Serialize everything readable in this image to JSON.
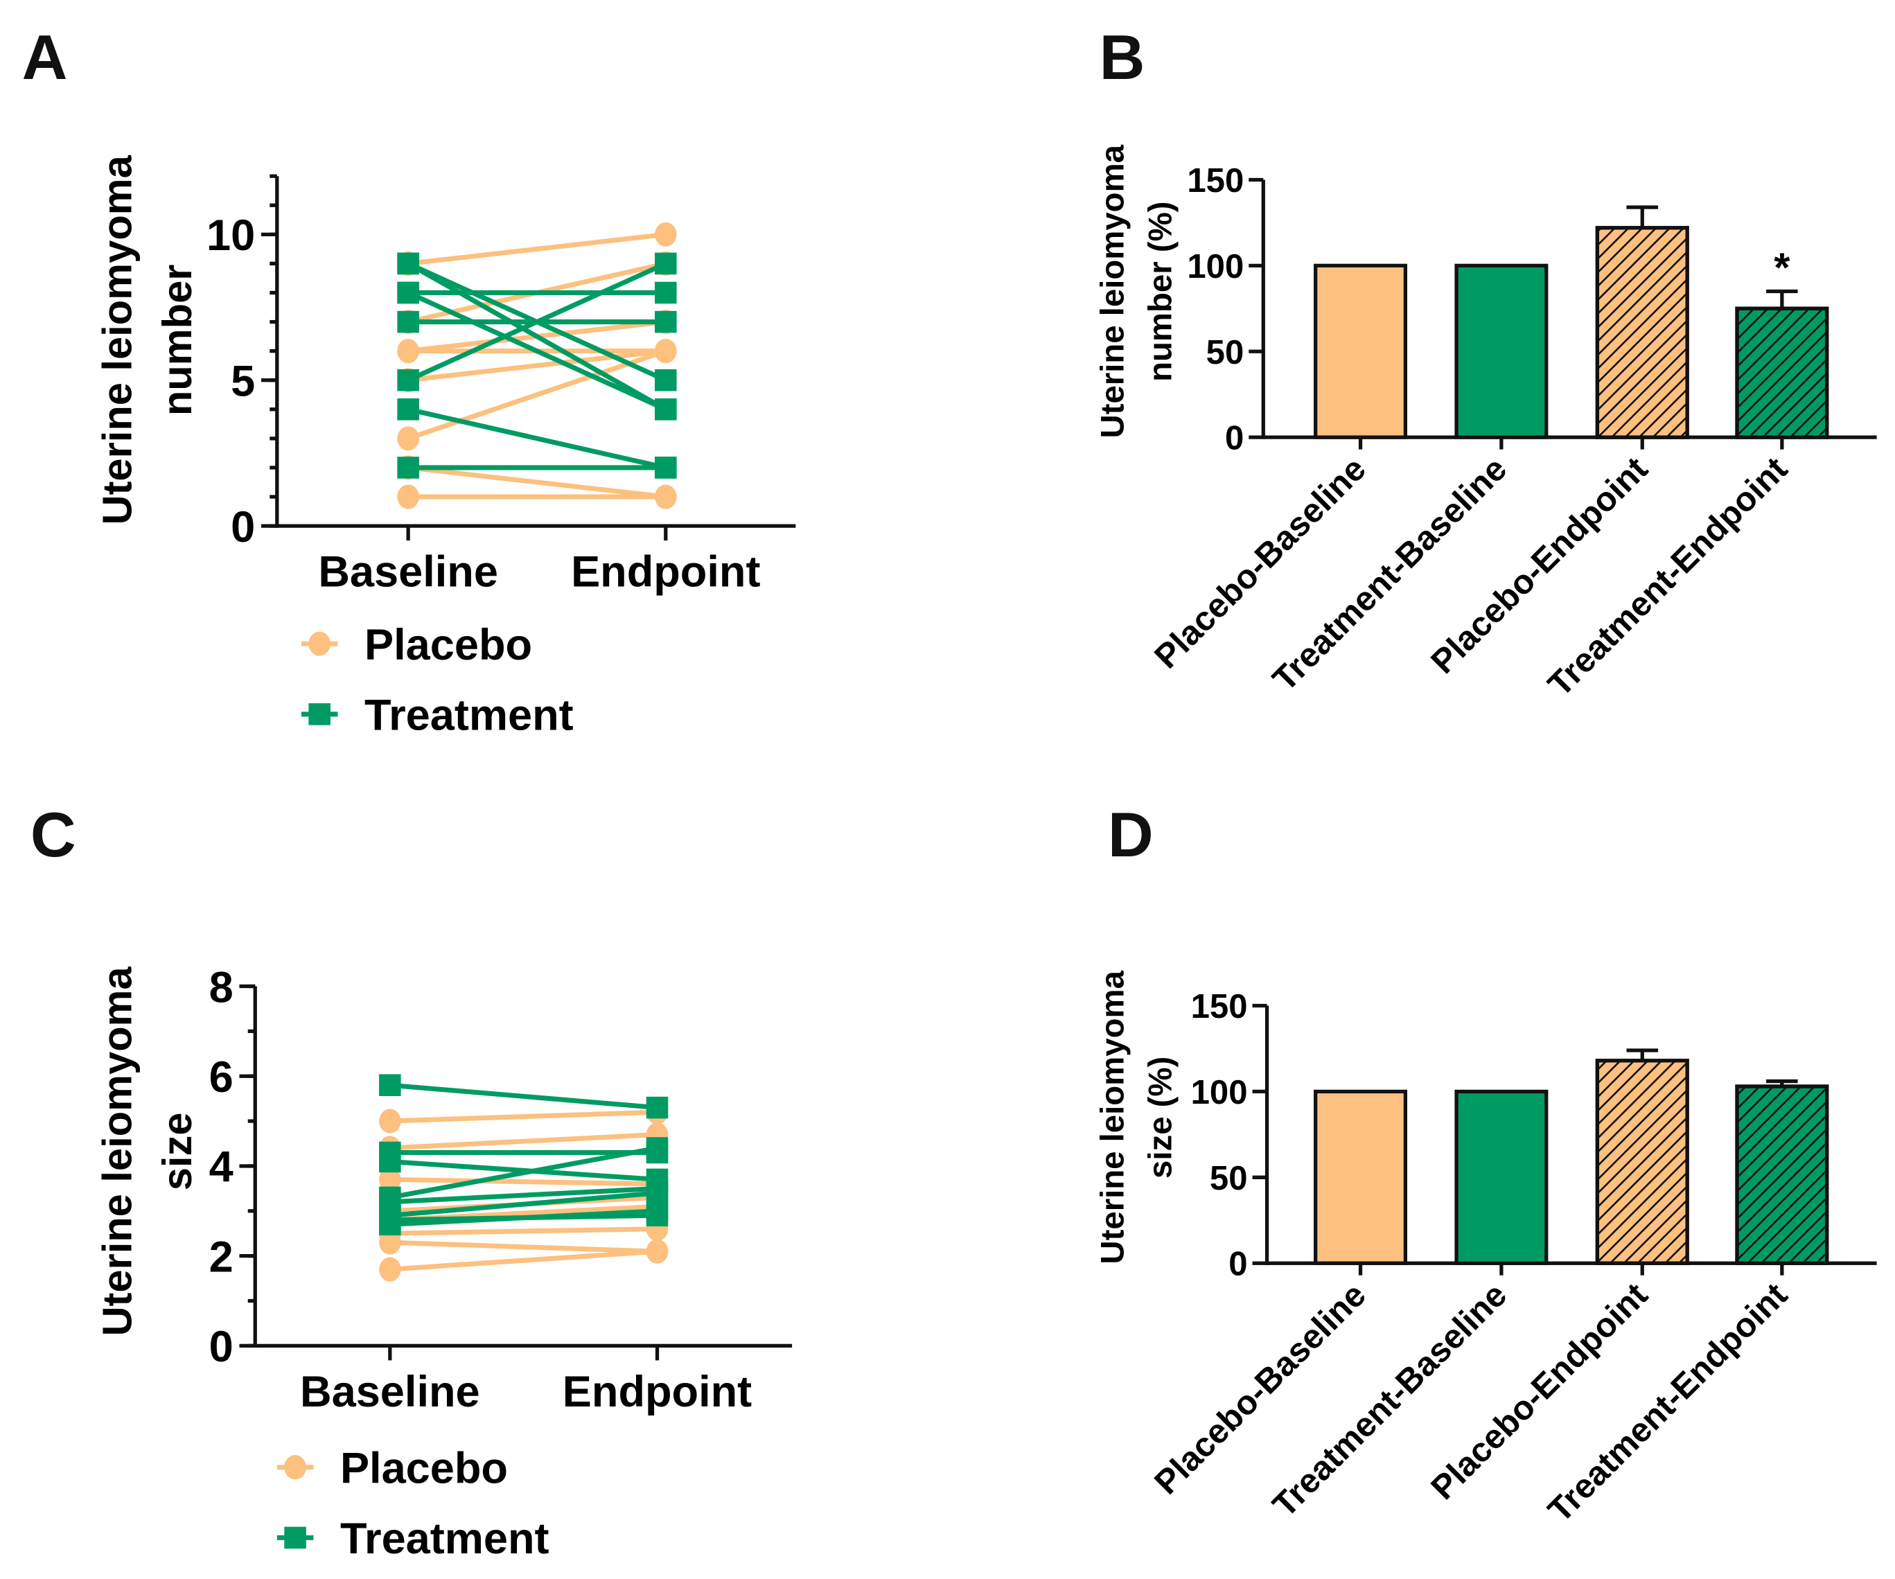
{
  "colors": {
    "placebo": "#FDC07F",
    "treatment": "#009B62",
    "axis": "#111111"
  },
  "chart_data": [
    {
      "panel": "A",
      "type": "line",
      "ylabel": [
        "Uterine leiomyoma",
        "number"
      ],
      "categories": [
        "Baseline",
        "Endpoint"
      ],
      "ylim": [
        0,
        12
      ],
      "yticks": [
        0,
        5,
        10
      ],
      "legend": [
        "Placebo",
        "Treatment"
      ],
      "series": [
        {
          "name": "Placebo",
          "pairs": [
            [
              9,
              10
            ],
            [
              7,
              9
            ],
            [
              6,
              7
            ],
            [
              6,
              6
            ],
            [
              5,
              6
            ],
            [
              3,
              6
            ],
            [
              2,
              1
            ],
            [
              1,
              1
            ]
          ]
        },
        {
          "name": "Treatment",
          "pairs": [
            [
              9,
              4
            ],
            [
              9,
              5
            ],
            [
              8,
              8
            ],
            [
              8,
              4
            ],
            [
              7,
              7
            ],
            [
              5,
              9
            ],
            [
              4,
              2
            ],
            [
              2,
              2
            ]
          ]
        }
      ]
    },
    {
      "panel": "B",
      "type": "bar",
      "ylabel": [
        "Uterine leiomyoma",
        "number (%)"
      ],
      "categories": [
        "Placebo-Baseline",
        "Treatment-Baseline",
        "Placebo-Endpoint",
        "Treatment-Endpoint"
      ],
      "values": [
        100,
        100,
        122,
        75
      ],
      "errors": [
        0,
        0,
        12,
        10
      ],
      "hatched": [
        false,
        false,
        true,
        true
      ],
      "group": [
        "placebo",
        "treatment",
        "placebo",
        "treatment"
      ],
      "annotations": [
        "",
        "",
        "",
        "*"
      ],
      "ylim": [
        0,
        150
      ],
      "yticks": [
        0,
        50,
        100,
        150
      ]
    },
    {
      "panel": "C",
      "type": "line",
      "ylabel": [
        "Uterine leiomyoma",
        "size"
      ],
      "categories": [
        "Baseline",
        "Endpoint"
      ],
      "ylim": [
        0,
        8
      ],
      "yticks": [
        0,
        2,
        4,
        6,
        8
      ],
      "legend": [
        "Placebo",
        "Treatment"
      ],
      "series": [
        {
          "name": "Placebo",
          "pairs": [
            [
              5.0,
              5.2
            ],
            [
              4.4,
              4.7
            ],
            [
              3.7,
              3.6
            ],
            [
              3.0,
              3.3
            ],
            [
              2.8,
              3.1
            ],
            [
              2.5,
              2.6
            ],
            [
              2.3,
              2.1
            ],
            [
              1.7,
              2.1
            ]
          ]
        },
        {
          "name": "Treatment",
          "pairs": [
            [
              5.8,
              5.3
            ],
            [
              4.3,
              4.3
            ],
            [
              4.1,
              3.7
            ],
            [
              3.3,
              4.4
            ],
            [
              3.2,
              3.5
            ],
            [
              2.9,
              3.4
            ],
            [
              2.8,
              2.9
            ],
            [
              2.7,
              3.0
            ]
          ]
        }
      ]
    },
    {
      "panel": "D",
      "type": "bar",
      "ylabel": [
        "Uterine leiomyoma",
        "size (%)"
      ],
      "categories": [
        "Placebo-Baseline",
        "Treatment-Baseline",
        "Placebo-Endpoint",
        "Treatment-Endpoint"
      ],
      "values": [
        100,
        100,
        118,
        103
      ],
      "errors": [
        0,
        0,
        6,
        3
      ],
      "hatched": [
        false,
        false,
        true,
        true
      ],
      "group": [
        "placebo",
        "treatment",
        "placebo",
        "treatment"
      ],
      "annotations": [
        "",
        "",
        "",
        ""
      ],
      "ylim": [
        0,
        150
      ],
      "yticks": [
        0,
        50,
        100,
        150
      ]
    }
  ]
}
